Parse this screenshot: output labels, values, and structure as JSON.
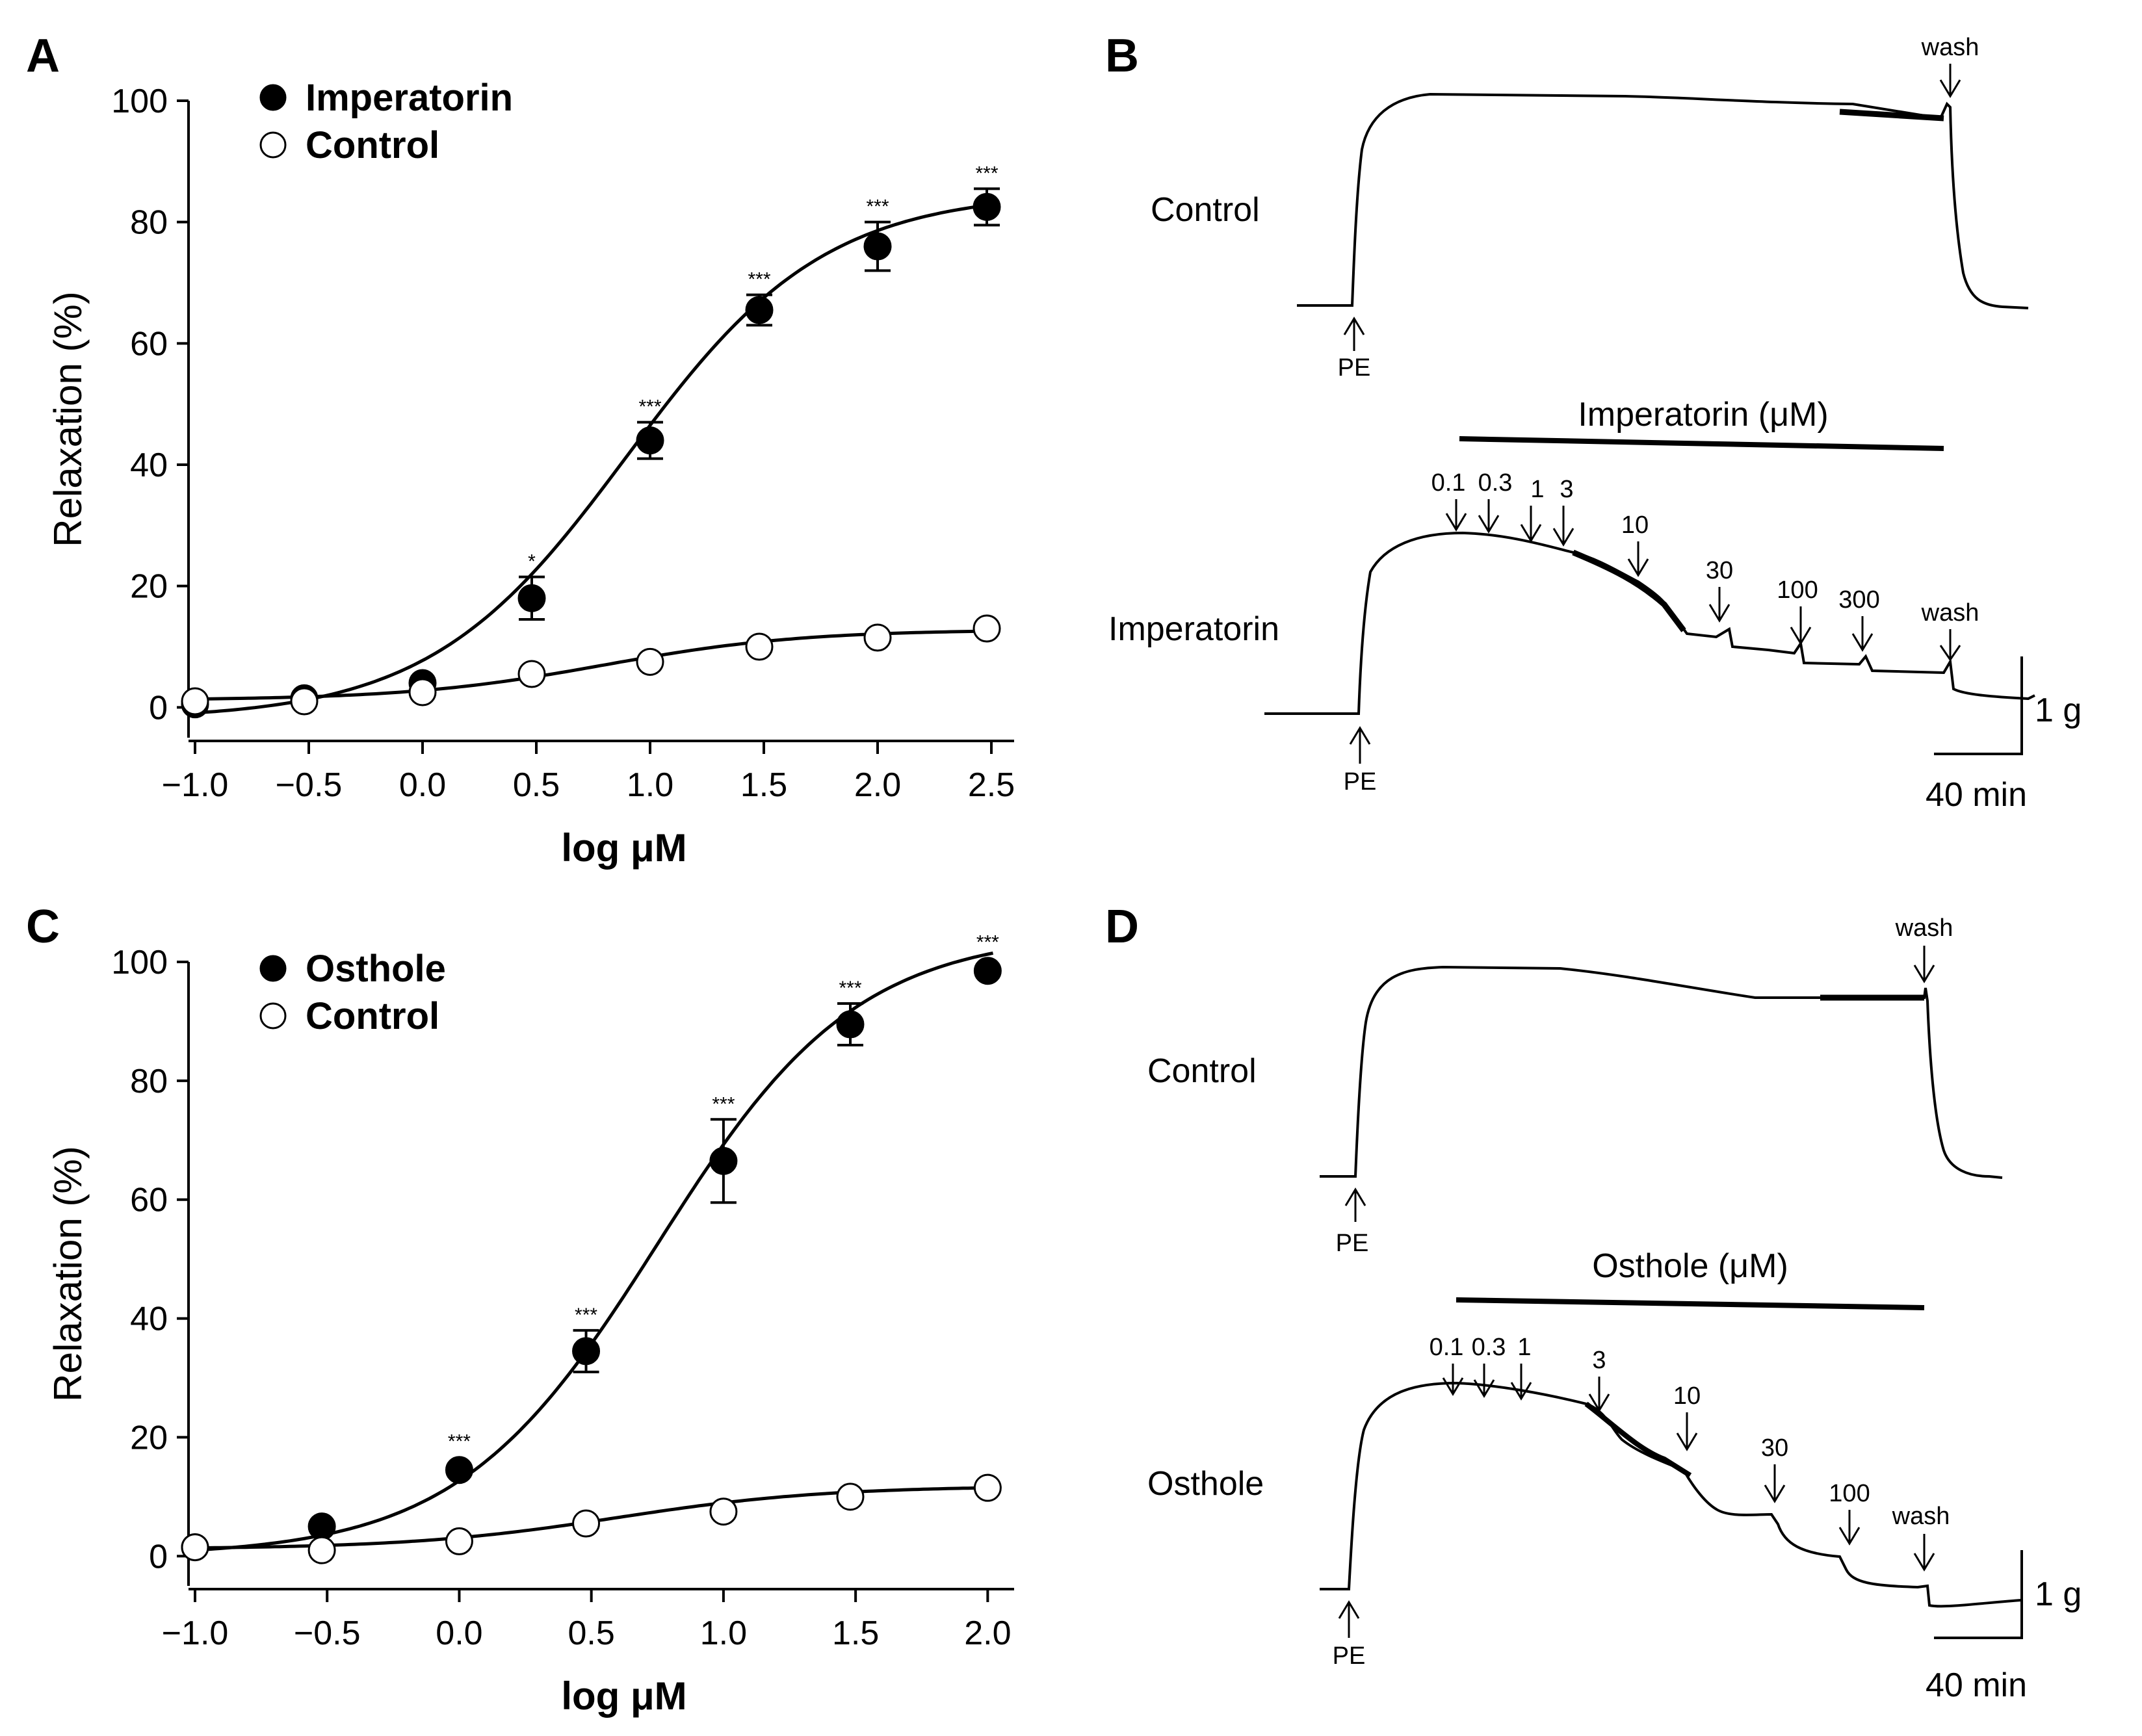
{
  "chart_data": [
    {
      "panel": "A",
      "type": "scatter",
      "title": "",
      "xlabel": "log μM",
      "ylabel": "Relaxation (%)",
      "xlim": [
        -1.0,
        2.6
      ],
      "ylim": [
        -5,
        100
      ],
      "xticks": [
        -1.0,
        -0.5,
        0.0,
        0.5,
        1.0,
        1.5,
        2.0,
        2.5
      ],
      "xtick_labels": [
        "−1.0",
        "−0.5",
        "0.0",
        "0.5",
        "1.0",
        "1.5",
        "2.0",
        "2.5"
      ],
      "yticks": [
        0,
        20,
        40,
        60,
        80,
        100
      ],
      "ytick_labels": [
        "0",
        "20",
        "40",
        "60",
        "80",
        "100"
      ],
      "legend": [
        "Imperatorin",
        "Control"
      ],
      "legend_position": "top-left",
      "series": [
        {
          "name": "Imperatorin",
          "marker": "filled-circle",
          "x": [
            -1.0,
            -0.52,
            0.0,
            0.48,
            1.0,
            1.48,
            2.0,
            2.48
          ],
          "y": [
            0.5,
            1.5,
            4,
            18,
            44,
            65.5,
            76,
            82.5
          ],
          "err": [
            0,
            0,
            0,
            3.5,
            3,
            2.5,
            4,
            3
          ],
          "sig": [
            "",
            "",
            "",
            "*",
            "***",
            "***",
            "***",
            "***"
          ],
          "fit": {
            "bottom": -2,
            "top": 85,
            "ec50log": 0.9,
            "hill": 1.0
          }
        },
        {
          "name": "Control",
          "marker": "open-circle",
          "x": [
            -1.0,
            -0.52,
            0.0,
            0.48,
            1.0,
            1.48,
            2.0,
            2.48
          ],
          "y": [
            1,
            1,
            2.5,
            5.5,
            7.5,
            10,
            11.5,
            13
          ],
          "err": [
            0,
            0,
            0,
            0,
            0,
            0,
            0,
            0
          ],
          "sig": [
            "",
            "",
            "",
            "",
            "",
            "",
            "",
            ""
          ],
          "fit": {
            "bottom": 1.2,
            "top": 12.8,
            "ec50log": 0.8,
            "hill": 1.0
          }
        }
      ]
    },
    {
      "panel": "C",
      "type": "scatter",
      "title": "",
      "xlabel": "log μM",
      "ylabel": "Relaxation (%)",
      "xlim": [
        -1.0,
        2.1
      ],
      "ylim": [
        -5,
        100
      ],
      "xticks": [
        -1.0,
        -0.5,
        0.0,
        0.5,
        1.0,
        1.5,
        2.0
      ],
      "xtick_labels": [
        "−1.0",
        "−0.5",
        "0.0",
        "0.5",
        "1.0",
        "1.5",
        "2.0"
      ],
      "yticks": [
        0,
        20,
        40,
        60,
        80,
        100
      ],
      "ytick_labels": [
        "0",
        "20",
        "40",
        "60",
        "80",
        "100"
      ],
      "legend": [
        "Osthole",
        "Control"
      ],
      "legend_position": "top-left",
      "series": [
        {
          "name": "Osthole",
          "marker": "filled-circle",
          "x": [
            -1.0,
            -0.52,
            0.0,
            0.48,
            1.0,
            1.48,
            2.0
          ],
          "y": [
            1.5,
            5,
            14.5,
            34.5,
            66.5,
            89.5,
            98.5
          ],
          "err": [
            0,
            0,
            0,
            3.5,
            7,
            3.5,
            0
          ],
          "sig": [
            "",
            "",
            "***",
            "***",
            "***",
            "***",
            "***"
          ],
          "fit": {
            "bottom": 0,
            "top": 105,
            "ec50log": 0.75,
            "hill": 1.15
          }
        },
        {
          "name": "Control",
          "marker": "open-circle",
          "x": [
            -1.0,
            -0.52,
            0.0,
            0.48,
            1.0,
            1.48,
            2.0
          ],
          "y": [
            1.5,
            1,
            2.5,
            5.5,
            7.5,
            10,
            11.5
          ],
          "err": [
            0,
            0,
            0,
            0,
            0,
            0,
            0
          ],
          "sig": [
            "",
            "",
            "",
            "",
            "",
            "",
            ""
          ],
          "fit": {
            "bottom": 1.2,
            "top": 11.8,
            "ec50log": 0.6,
            "hill": 1.1
          }
        }
      ]
    }
  ],
  "panels": {
    "A": "A",
    "B": "B",
    "C": "C",
    "D": "D"
  },
  "traces": {
    "B": {
      "control_label": "Control",
      "drug_label": "Imperatorin",
      "bar_label": "Imperatorin (μM)",
      "pe_label": "PE",
      "wash_label": "wash",
      "doses": [
        "0.1",
        "0.3",
        "1",
        "3",
        "10",
        "30",
        "100",
        "300"
      ],
      "scale_force": "1 g",
      "scale_time": "40 min"
    },
    "D": {
      "control_label": "Control",
      "drug_label": "Osthole",
      "bar_label": "Osthole (μM)",
      "pe_label": "PE",
      "wash_label": "wash",
      "doses": [
        "0.1",
        "0.3",
        "1",
        "3",
        "10",
        "30",
        "100"
      ],
      "scale_force": "1 g",
      "scale_time": "40 min"
    }
  },
  "colors": {
    "ink": "#000000",
    "background": "#ffffff"
  }
}
